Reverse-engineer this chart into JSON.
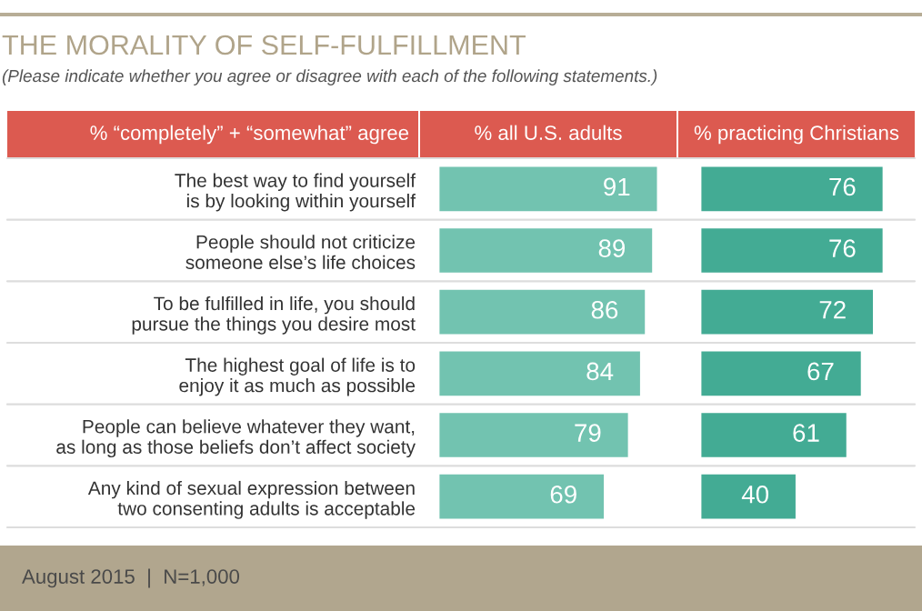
{
  "chart_data": [
    {
      "type": "bar",
      "orientation": "horizontal",
      "title": "THE MORALITY OF SELF-FULFILLMENT",
      "subtitle": "(Please indicate whether you agree or disagree with each of the following statements.)",
      "ylabel": "% “completely” + “somewhat” agree",
      "xlabel": "% all U.S. adults",
      "categories": [
        "The best way to find yourself\nis by looking within yourself",
        "People should not criticize\nsomeone else’s life choices",
        "To be fulfilled in life, you should\npursue the things you desire most",
        "The highest goal of life is to\nenjoy it as much as possible",
        "People can believe whatever they want,\nas long as those beliefs don’t affect society",
        "Any kind of sexual expression between\ntwo consenting adults is acceptable"
      ],
      "values": [
        91,
        89,
        86,
        84,
        79,
        69
      ],
      "color": "#72c3b0",
      "data_labels": true,
      "tick_labels": "y",
      "annotations": [
        "August 2015  |  N=1,000"
      ]
    },
    {
      "type": "bar",
      "orientation": "horizontal",
      "xlabel": "% practicing Christians",
      "categories": [
        null,
        null,
        null,
        null,
        null,
        null
      ],
      "values": [
        76,
        76,
        72,
        67,
        61,
        40
      ],
      "color": "#43ab94",
      "data_labels": true
    }
  ]
}
